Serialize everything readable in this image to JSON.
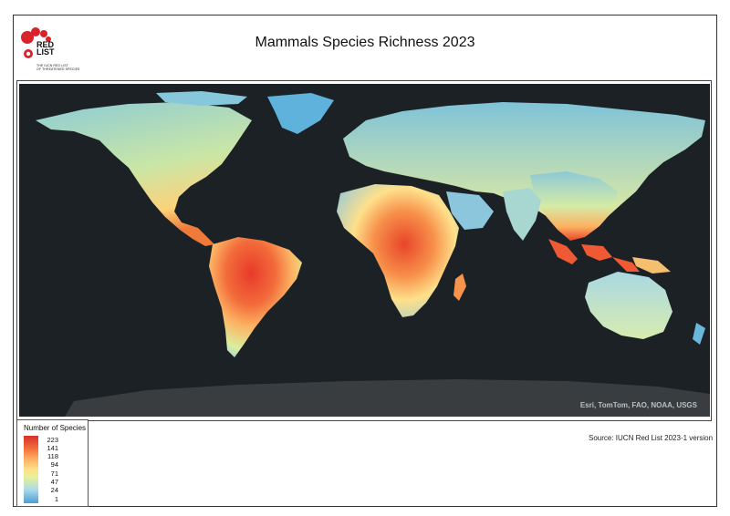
{
  "header": {
    "title": "Mammals Species Richness 2023",
    "logo_word": "RED\nLIST",
    "logo_tagline": "THE IUCN RED LIST\nOF THREATENED SPECIES"
  },
  "map": {
    "attribution": "Esri, TomTom, FAO, NOAA, USGS",
    "ocean_color": "#1b2124",
    "antarctica_color": "#3a3d40"
  },
  "legend": {
    "title": "Number of Species",
    "values": [
      "223",
      "141",
      "118",
      "94",
      "71",
      "47",
      "24",
      "1"
    ],
    "colors": [
      "#d7302a",
      "#f26b3a",
      "#fdae61",
      "#fee08b",
      "#e6f09a",
      "#abd9e9",
      "#4a9fd4"
    ]
  },
  "footer": {
    "source": "Source: IUCN Red List 2023-1 version"
  }
}
